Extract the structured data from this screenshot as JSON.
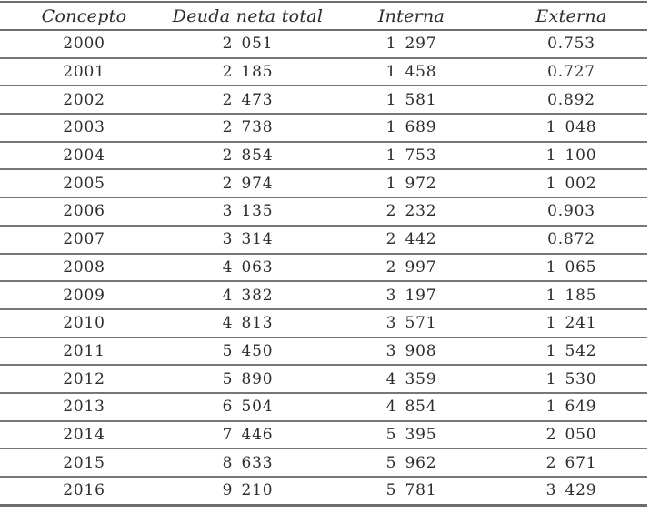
{
  "table": {
    "title_hint": "",
    "columns": [
      "Concepto",
      "Deuda neta total",
      "Interna",
      "Externa"
    ],
    "column_keys": [
      "concepto",
      "deuda-neta-total",
      "interna",
      "externa"
    ],
    "rows": [
      [
        "2000",
        "2 051",
        "1 297",
        "0.753"
      ],
      [
        "2001",
        "2 185",
        "1 458",
        "0.727"
      ],
      [
        "2002",
        "2 473",
        "1 581",
        "0.892"
      ],
      [
        "2003",
        "2 738",
        "1 689",
        "1 048"
      ],
      [
        "2004",
        "2 854",
        "1 753",
        "1 100"
      ],
      [
        "2005",
        "2 974",
        "1 972",
        "1 002"
      ],
      [
        "2006",
        "3 135",
        "2 232",
        "0.903"
      ],
      [
        "2007",
        "3 314",
        "2 442",
        "0.872"
      ],
      [
        "2008",
        "4 063",
        "2 997",
        "1 065"
      ],
      [
        "2009",
        "4 382",
        "3 197",
        "1 185"
      ],
      [
        "2010",
        "4 813",
        "3 571",
        "1 241"
      ],
      [
        "2011",
        "5 450",
        "3 908",
        "1 542"
      ],
      [
        "2012",
        "5 890",
        "4 359",
        "1 530"
      ],
      [
        "2013",
        "6 504",
        "4 854",
        "1 649"
      ],
      [
        "2014",
        "7 446",
        "5 395",
        "2 050"
      ],
      [
        "2015",
        "8 633",
        "5 962",
        "2 671"
      ],
      [
        "2016",
        "9 210",
        "5 781",
        "3 429"
      ]
    ],
    "colors": {
      "rule_gray": "#6d6d6d",
      "text": "#2f2b29",
      "background": "#ffffff"
    }
  }
}
